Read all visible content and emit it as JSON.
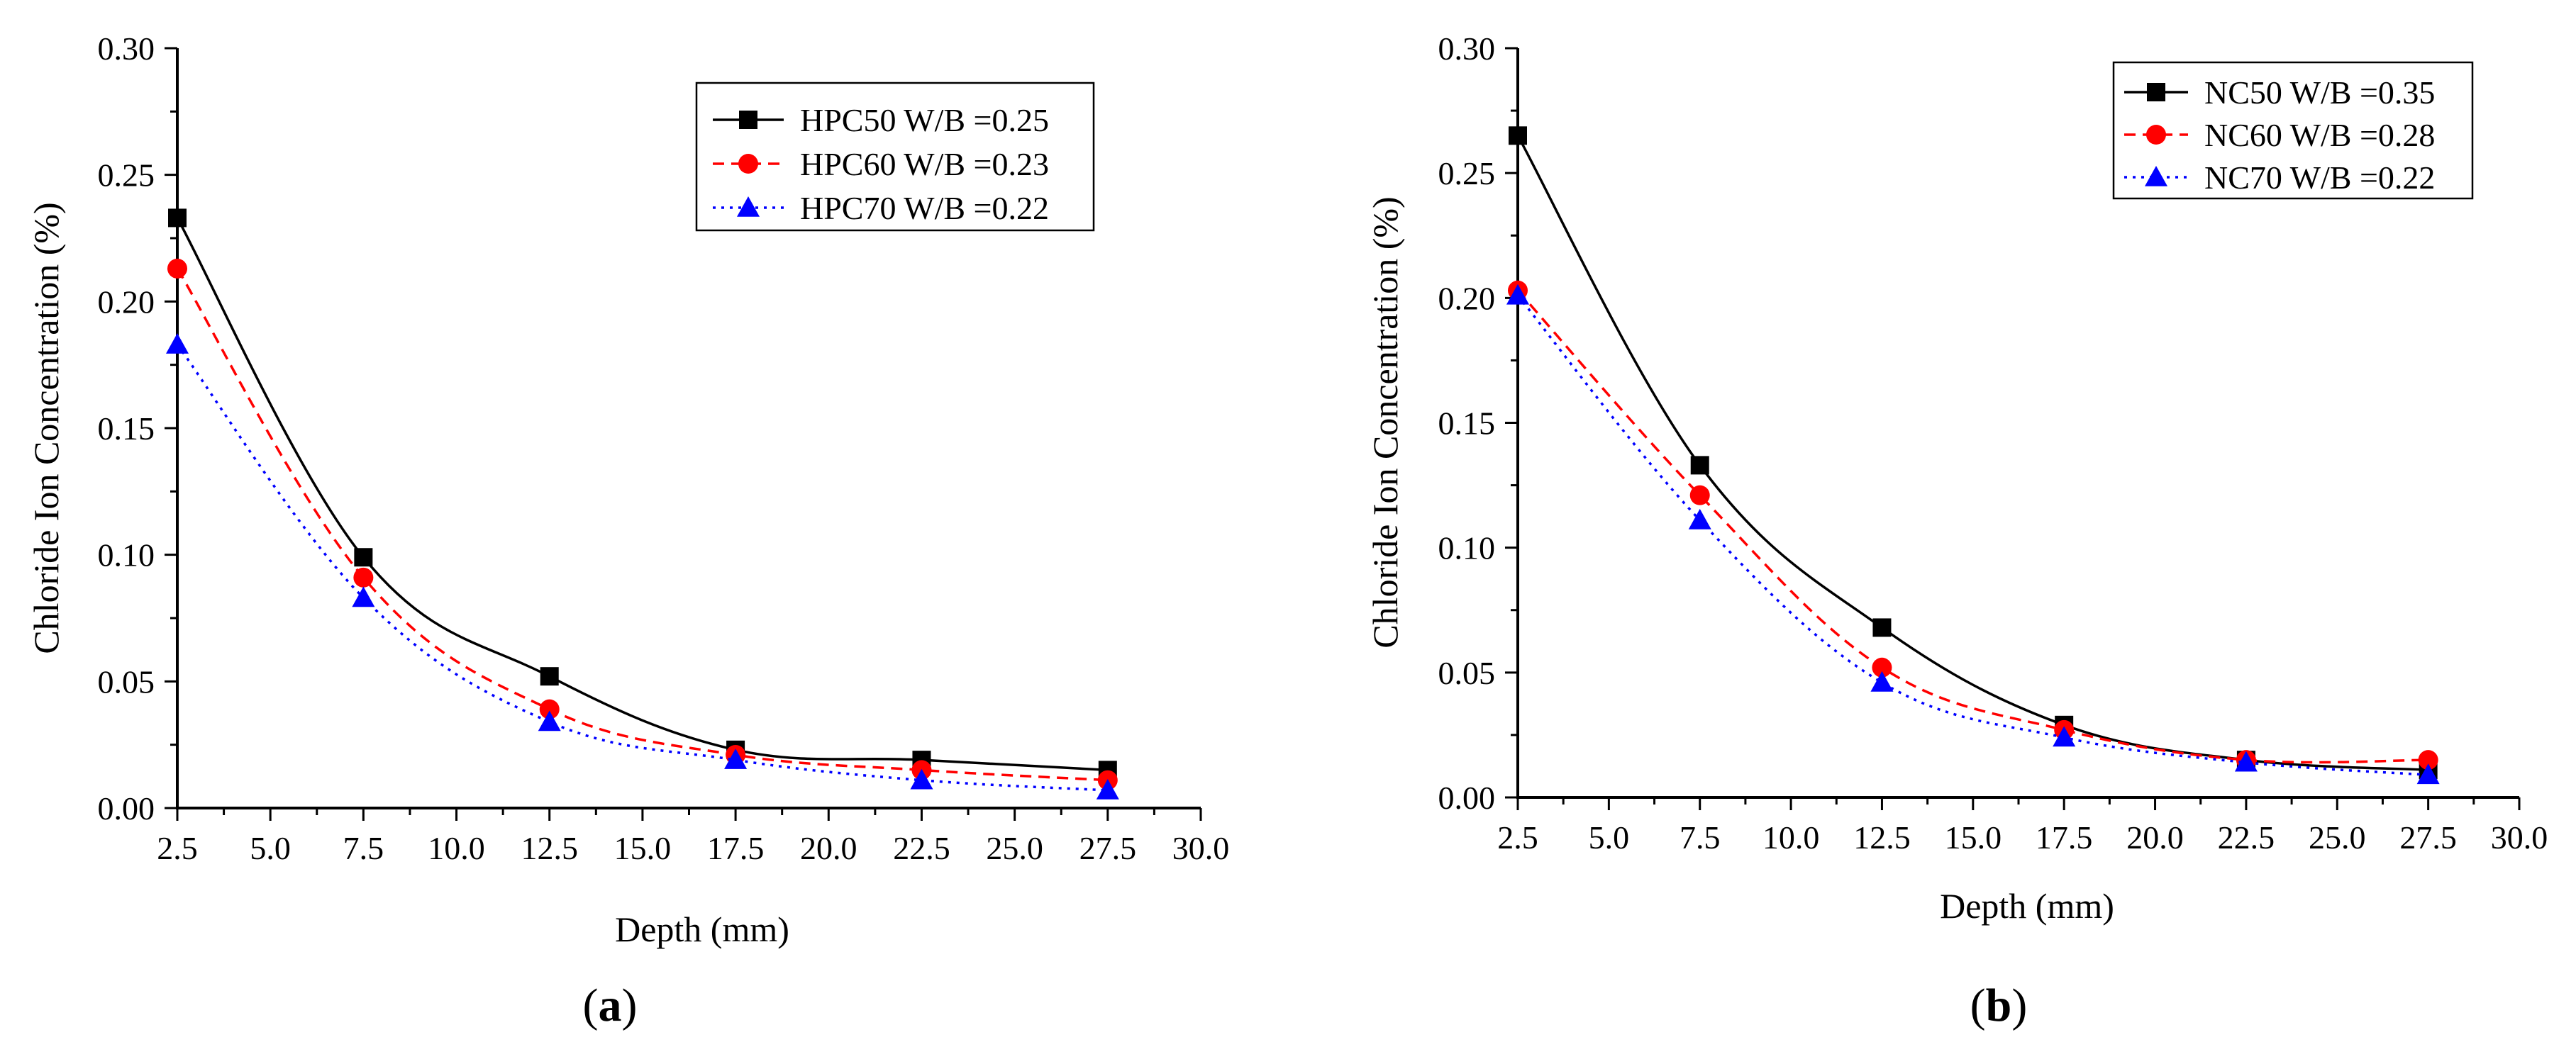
{
  "figure": {
    "panel_a_label_open": "(",
    "panel_a_label_letter": "a",
    "panel_a_label_close": ")",
    "panel_b_label_open": "(",
    "panel_b_label_letter": "b",
    "panel_b_label_close": ")"
  },
  "chart_data": [
    {
      "type": "line",
      "panel": "a",
      "xlabel": "Depth (mm)",
      "ylabel": "Chloride Ion Concentration (%)",
      "xlim": [
        2.5,
        30.0
      ],
      "ylim": [
        0.0,
        0.3
      ],
      "xticks": [
        "2.5",
        "5.0",
        "7.5",
        "10.0",
        "12.5",
        "15.0",
        "17.5",
        "20.0",
        "22.5",
        "25.0",
        "27.5",
        "30.0"
      ],
      "yticks": [
        "0.00",
        "0.05",
        "0.10",
        "0.15",
        "0.20",
        "0.25",
        "0.30"
      ],
      "grid": false,
      "legend_position": "top-right",
      "x": [
        2.5,
        7.5,
        12.5,
        17.5,
        22.5,
        27.5
      ],
      "series": [
        {
          "name": "HPC50 W/B =0.25",
          "color": "#000000",
          "marker": "square",
          "line": "solid",
          "values": [
            0.233,
            0.099,
            0.052,
            0.023,
            0.019,
            0.015
          ]
        },
        {
          "name": "HPC60 W/B =0.23",
          "color": "#ff0000",
          "marker": "circle",
          "line": "dashed",
          "values": [
            0.213,
            0.091,
            0.039,
            0.021,
            0.015,
            0.011
          ]
        },
        {
          "name": "HPC70 W/B =0.22",
          "color": "#0000ff",
          "marker": "triangle",
          "line": "dotted",
          "values": [
            0.183,
            0.083,
            0.034,
            0.019,
            0.011,
            0.007
          ]
        }
      ]
    },
    {
      "type": "line",
      "panel": "b",
      "xlabel": "Depth (mm)",
      "ylabel": "Chloride Ion Concentration (%)",
      "xlim": [
        2.5,
        30.0
      ],
      "ylim": [
        0.0,
        0.3
      ],
      "xticks": [
        "2.5",
        "5.0",
        "7.5",
        "10.0",
        "12.5",
        "15.0",
        "17.5",
        "20.0",
        "22.5",
        "25.0",
        "27.5",
        "30.0"
      ],
      "yticks": [
        "0.00",
        "0.05",
        "0.10",
        "0.15",
        "0.20",
        "0.25",
        "0.30"
      ],
      "grid": false,
      "legend_position": "top-right",
      "x": [
        2.5,
        7.5,
        12.5,
        17.5,
        22.5,
        27.5
      ],
      "series": [
        {
          "name": "NC50 W/B =0.35",
          "color": "#000000",
          "marker": "square",
          "line": "solid",
          "values": [
            0.265,
            0.133,
            0.068,
            0.029,
            0.015,
            0.011
          ]
        },
        {
          "name": "NC60 W/B =0.28",
          "color": "#ff0000",
          "marker": "circle",
          "line": "dashed",
          "values": [
            0.203,
            0.121,
            0.052,
            0.027,
            0.015,
            0.015
          ]
        },
        {
          "name": "NC70 W/B =0.22",
          "color": "#0000ff",
          "marker": "triangle",
          "line": "dotted",
          "values": [
            0.201,
            0.111,
            0.046,
            0.024,
            0.014,
            0.009
          ]
        }
      ]
    }
  ]
}
